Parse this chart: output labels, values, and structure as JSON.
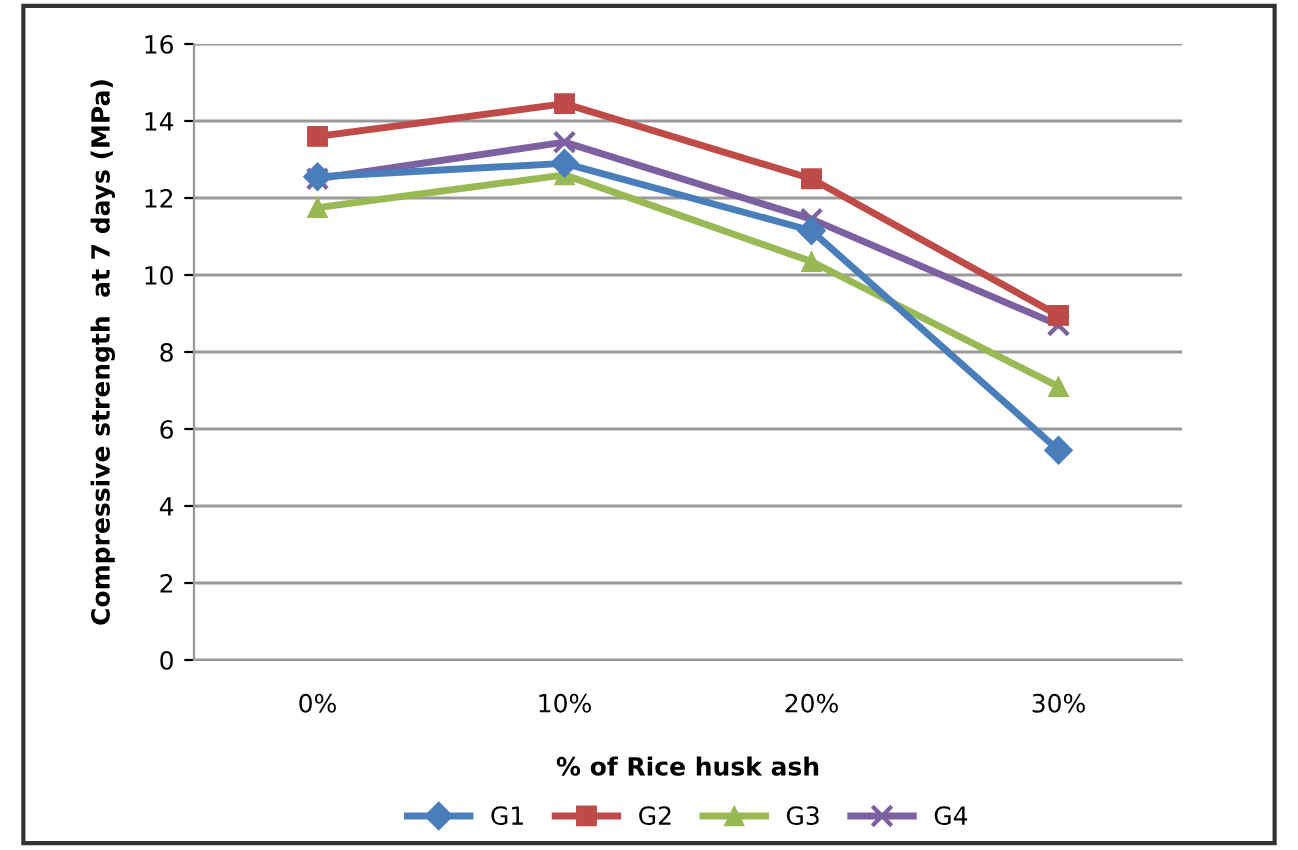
{
  "chart_data": {
    "type": "line",
    "xlabel": "% of Rice husk ash",
    "ylabel": "Compressive strength  at 7 days (MPa)",
    "categories": [
      "0%",
      "10%",
      "20%",
      "30%"
    ],
    "series": [
      {
        "name": "G1",
        "color": "#4a7ebb",
        "marker": "diamond",
        "values": [
          12.55,
          12.9,
          11.15,
          5.45
        ]
      },
      {
        "name": "G2",
        "color": "#be4b48",
        "marker": "square",
        "values": [
          13.6,
          14.45,
          12.5,
          8.95
        ]
      },
      {
        "name": "G3",
        "color": "#98b954",
        "marker": "triangle",
        "values": [
          11.75,
          12.6,
          10.35,
          7.1
        ]
      },
      {
        "name": "G4",
        "color": "#7d60a0",
        "marker": "cross",
        "values": [
          12.5,
          13.45,
          11.45,
          8.7
        ]
      }
    ],
    "ylim": [
      0,
      16
    ],
    "yticks": [
      0,
      2,
      4,
      6,
      8,
      10,
      12,
      14,
      16
    ],
    "grid": "y",
    "legend": "bottom"
  }
}
